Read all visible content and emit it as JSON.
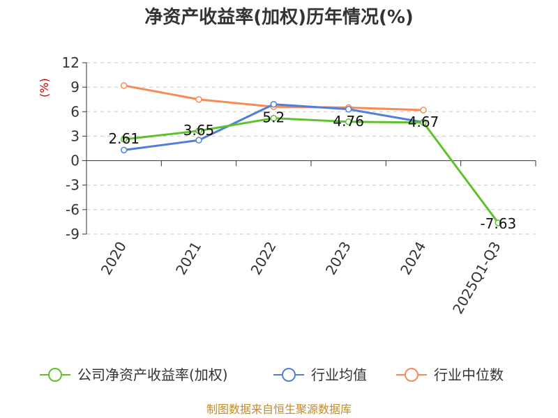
{
  "chart_data": {
    "type": "line",
    "title": "净资产收益率(加权)历年情况(%)",
    "ylabel": "(%)",
    "categories": [
      "2020",
      "2021",
      "2022",
      "2023",
      "2024",
      "2025Q1-Q3"
    ],
    "ylim": [
      -9,
      12
    ],
    "yticks": [
      12,
      9,
      6,
      3,
      0,
      -3,
      -6,
      -9
    ],
    "yticks_labels": [
      "12",
      "9",
      "6",
      "3",
      "0",
      "-3",
      "-6",
      "-9"
    ],
    "grid": true,
    "legend_position": "bottom",
    "series": [
      {
        "name": "公司净资产收益率(加权)",
        "color": "#5ec12c",
        "values": [
          2.61,
          3.65,
          5.2,
          4.76,
          4.67,
          -7.63
        ],
        "labels": [
          "2.61",
          "3.65",
          "5.2",
          "4.76",
          "4.67",
          "-7.63"
        ]
      },
      {
        "name": "行业均值",
        "color": "#4f7fdb",
        "values": [
          1.3,
          2.5,
          6.9,
          6.3,
          4.7,
          null
        ]
      },
      {
        "name": "行业中位数",
        "color": "#f68b55",
        "values": [
          9.2,
          7.5,
          6.6,
          6.5,
          6.2,
          null
        ]
      }
    ]
  },
  "source": "制图数据来自恒生聚源数据库"
}
